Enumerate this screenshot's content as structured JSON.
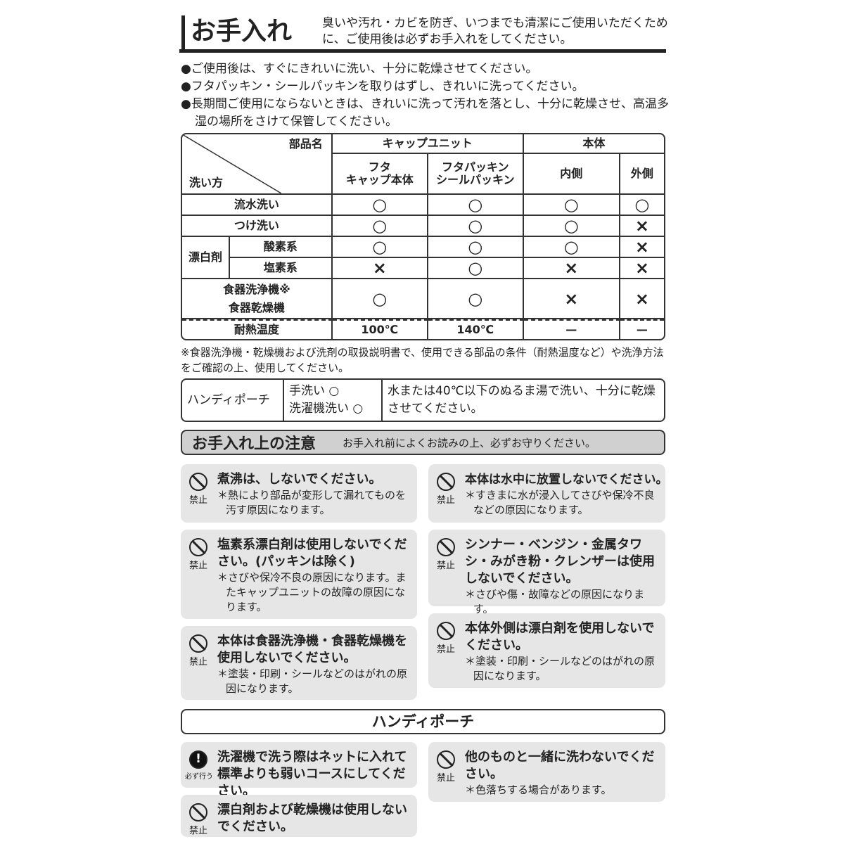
{
  "header": {
    "title": "お手入れ",
    "intro": "臭いや汚れ・カビを防ぎ、いつまでも清潔にご使用いただくために、ご使用後は必ずお手入れをしてください。"
  },
  "bullets": [
    "●ご使用後は、すぐにきれいに洗い、十分に乾燥させてください。",
    "●フタパッキン・シールパッキンを取りはずし、きれいに洗ってください。",
    "●長期間ご使用にならないときは、きれいに洗って汚れを落とし、十分に乾燥させ、高温多湿の場所をさけて保管してください。"
  ],
  "table": {
    "corner_top": "部品名",
    "corner_bottom": "洗い方",
    "group_cap": "キャップユニット",
    "group_body": "本体",
    "cols": [
      "フタ\nキャップ本体",
      "フタパッキン\nシールパッキン",
      "内側",
      "外側"
    ],
    "bleach": "漂白剤",
    "rows": [
      {
        "label": "流水洗い",
        "vals": [
          "○",
          "○",
          "○",
          "○"
        ]
      },
      {
        "label": "つけ洗い",
        "vals": [
          "○",
          "○",
          "○",
          "×"
        ]
      },
      {
        "label": "酸素系",
        "vals": [
          "○",
          "○",
          "○",
          "×"
        ]
      },
      {
        "label": "塩素系",
        "vals": [
          "×",
          "○",
          "×",
          "×"
        ]
      },
      {
        "label": "食器洗浄機※\n食器乾燥機",
        "vals": [
          "○",
          "○",
          "×",
          "×"
        ]
      },
      {
        "label": "耐熱温度",
        "vals": [
          "100℃",
          "140℃",
          "—",
          "—"
        ]
      }
    ]
  },
  "note": "※食器洗浄機・乾燥機および洗剤の取扱説明書で、使用できる部品の条件（耐熱温度など）や洗浄方法をご確認の上、使用してください。",
  "pouch": {
    "name": "ハンディポーチ",
    "hand": "手洗い ○",
    "machine": "洗濯機洗い ○",
    "desc": "水または40℃以下のぬるま湯で洗い、十分に乾燥させてください。"
  },
  "caution": {
    "title": "お手入れ上の注意",
    "sub": "お手入れ前によくお読みの上、必ずお守りください。"
  },
  "cards": [
    {
      "icon": "prohibit-icon",
      "label": "禁止",
      "main": "煮沸は、しないでください。",
      "detail": "＊熱により部品が変形して漏れてものを汚す原因になります。"
    },
    {
      "icon": "prohibit-icon",
      "label": "禁止",
      "main": "塩素系漂白剤は使用しないでください。(パッキンは除く)",
      "detail": "＊さびや保冷不良の原因になります。またキャップユニットの故障の原因になります。"
    },
    {
      "icon": "prohibit-icon",
      "label": "禁止",
      "main": "本体は食器洗浄機・食器乾燥機を使用しないでください。",
      "detail": "＊塗装・印刷・シールなどのはがれの原因になります。"
    },
    {
      "icon": "prohibit-icon",
      "label": "禁止",
      "main": "本体は水中に放置しないでください。",
      "detail": "＊すきまに水が浸入してさびや保冷不良などの原因になります。"
    },
    {
      "icon": "prohibit-icon",
      "label": "禁止",
      "main": "シンナー・ベンジン・金属タワシ・みがき粉・クレンザーは使用しないでください。",
      "detail": "＊さびや傷・故障などの原因になります。"
    },
    {
      "icon": "prohibit-icon",
      "label": "禁止",
      "main": "本体外側は漂白剤を使用しないでください。",
      "detail": "＊塗装・印刷・シールなどのはがれの原因になります。"
    }
  ],
  "pouch_section": {
    "title": "ハンディポーチ",
    "cards": [
      {
        "icon": "mandatory-icon",
        "label": "必ず行う",
        "main": "洗濯機で洗う際はネットに入れて標準よりも弱いコースにしてください。"
      },
      {
        "icon": "prohibit-icon",
        "label": "禁止",
        "main": "漂白剤および乾燥機は使用しないでください。"
      },
      {
        "icon": "prohibit-icon",
        "label": "禁止",
        "main": "他のものと一緒に洗わないでください。",
        "detail": "＊色落ちする場合があります。"
      }
    ]
  }
}
